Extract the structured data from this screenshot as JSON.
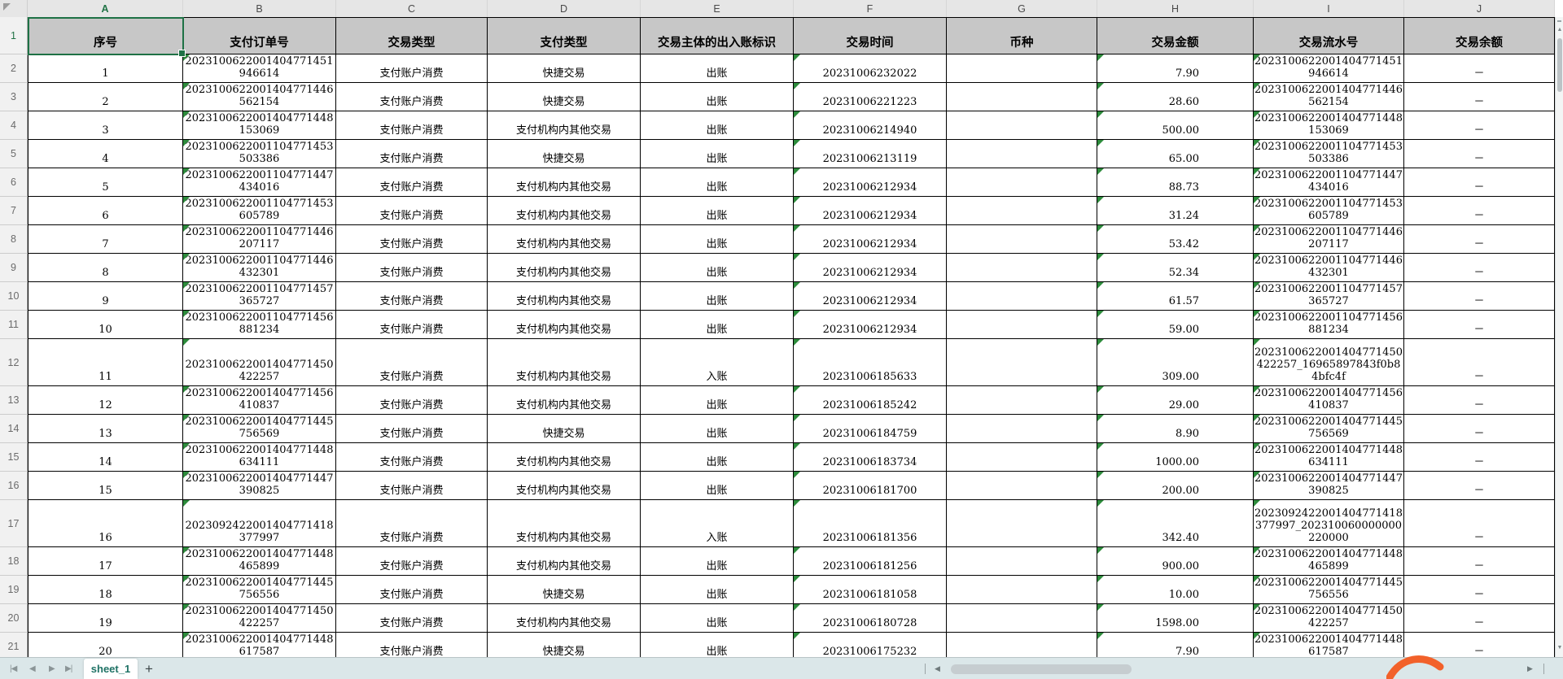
{
  "ui": {
    "selected_cell": "A1",
    "selected_column": "A",
    "selected_row": "1",
    "sheet_tabs": [
      "sheet_1"
    ],
    "add_tab_label": "+",
    "nav_icons": [
      "first-sheet-icon",
      "prev-sheet-icon",
      "next-sheet-icon",
      "last-sheet-icon"
    ],
    "nav_glyphs": [
      "|◀",
      "◀",
      "▶",
      "▶|"
    ],
    "hscroll_glyphs": {
      "left": "◀",
      "right": "▶"
    },
    "vscroll_glyphs": {
      "up": "▲",
      "down": "▼"
    }
  },
  "colors": {
    "selection_green": "#1e7145",
    "error_triangle_green": "#2d8c3c",
    "header_fill": "#c7c7c7",
    "tab_bar_bg": "#dbe7e9",
    "tab_text": "#1f7265",
    "accent_orange": "#f2612a"
  },
  "columns": [
    {
      "letter": "A",
      "header": "序号"
    },
    {
      "letter": "B",
      "header": "支付订单号"
    },
    {
      "letter": "C",
      "header": "交易类型"
    },
    {
      "letter": "D",
      "header": "支付类型"
    },
    {
      "letter": "E",
      "header": "交易主体的出入账标识"
    },
    {
      "letter": "F",
      "header": "交易时间"
    },
    {
      "letter": "G",
      "header": "币种"
    },
    {
      "letter": "H",
      "header": "交易金额"
    },
    {
      "letter": "I",
      "header": "交易流水号"
    },
    {
      "letter": "J",
      "header": "交易余额"
    }
  ],
  "row_numbers": [
    "1",
    "2",
    "3",
    "4",
    "5",
    "6",
    "7",
    "8",
    "9",
    "10",
    "11",
    "12",
    "13",
    "14",
    "15",
    "16",
    "17",
    "18",
    "19",
    "20",
    "21"
  ],
  "rows": [
    {
      "seq": "1",
      "order": "2023100622001404771451946614",
      "type": "支付账户消费",
      "pay": "快捷交易",
      "flag": "出账",
      "time": "20231006232022",
      "currency": "",
      "amount": "7.90",
      "serial": "2023100622001404771451946614",
      "balance": "－",
      "tall": false
    },
    {
      "seq": "2",
      "order": "2023100622001404771446562154",
      "type": "支付账户消费",
      "pay": "快捷交易",
      "flag": "出账",
      "time": "20231006221223",
      "currency": "",
      "amount": "28.60",
      "serial": "2023100622001404771446562154",
      "balance": "－",
      "tall": false
    },
    {
      "seq": "3",
      "order": "2023100622001404771448153069",
      "type": "支付账户消费",
      "pay": "支付机构内其他交易",
      "flag": "出账",
      "time": "20231006214940",
      "currency": "",
      "amount": "500.00",
      "serial": "2023100622001404771448153069",
      "balance": "－",
      "tall": false
    },
    {
      "seq": "4",
      "order": "2023100622001104771453503386",
      "type": "支付账户消费",
      "pay": "快捷交易",
      "flag": "出账",
      "time": "20231006213119",
      "currency": "",
      "amount": "65.00",
      "serial": "2023100622001104771453503386",
      "balance": "－",
      "tall": false
    },
    {
      "seq": "5",
      "order": "2023100622001104771447434016",
      "type": "支付账户消费",
      "pay": "支付机构内其他交易",
      "flag": "出账",
      "time": "20231006212934",
      "currency": "",
      "amount": "88.73",
      "serial": "2023100622001104771447434016",
      "balance": "－",
      "tall": false
    },
    {
      "seq": "6",
      "order": "2023100622001104771453605789",
      "type": "支付账户消费",
      "pay": "支付机构内其他交易",
      "flag": "出账",
      "time": "20231006212934",
      "currency": "",
      "amount": "31.24",
      "serial": "2023100622001104771453605789",
      "balance": "－",
      "tall": false
    },
    {
      "seq": "7",
      "order": "2023100622001104771446207117",
      "type": "支付账户消费",
      "pay": "支付机构内其他交易",
      "flag": "出账",
      "time": "20231006212934",
      "currency": "",
      "amount": "53.42",
      "serial": "2023100622001104771446207117",
      "balance": "－",
      "tall": false
    },
    {
      "seq": "8",
      "order": "2023100622001104771446432301",
      "type": "支付账户消费",
      "pay": "支付机构内其他交易",
      "flag": "出账",
      "time": "20231006212934",
      "currency": "",
      "amount": "52.34",
      "serial": "2023100622001104771446432301",
      "balance": "－",
      "tall": false
    },
    {
      "seq": "9",
      "order": "2023100622001104771457365727",
      "type": "支付账户消费",
      "pay": "支付机构内其他交易",
      "flag": "出账",
      "time": "20231006212934",
      "currency": "",
      "amount": "61.57",
      "serial": "2023100622001104771457365727",
      "balance": "－",
      "tall": false
    },
    {
      "seq": "10",
      "order": "2023100622001104771456881234",
      "type": "支付账户消费",
      "pay": "支付机构内其他交易",
      "flag": "出账",
      "time": "20231006212934",
      "currency": "",
      "amount": "59.00",
      "serial": "2023100622001104771456881234",
      "balance": "－",
      "tall": false
    },
    {
      "seq": "11",
      "order": "2023100622001404771450422257",
      "type": "支付账户消费",
      "pay": "支付机构内其他交易",
      "flag": "入账",
      "time": "20231006185633",
      "currency": "",
      "amount": "309.00",
      "serial": "2023100622001404771450422257_16965897843f0b84bfc4f",
      "balance": "－",
      "tall": true
    },
    {
      "seq": "12",
      "order": "2023100622001404771456410837",
      "type": "支付账户消费",
      "pay": "支付机构内其他交易",
      "flag": "出账",
      "time": "20231006185242",
      "currency": "",
      "amount": "29.00",
      "serial": "2023100622001404771456410837",
      "balance": "－",
      "tall": false
    },
    {
      "seq": "13",
      "order": "2023100622001404771445756569",
      "type": "支付账户消费",
      "pay": "快捷交易",
      "flag": "出账",
      "time": "20231006184759",
      "currency": "",
      "amount": "8.90",
      "serial": "2023100622001404771445756569",
      "balance": "－",
      "tall": false
    },
    {
      "seq": "14",
      "order": "2023100622001404771448634111",
      "type": "支付账户消费",
      "pay": "支付机构内其他交易",
      "flag": "出账",
      "time": "20231006183734",
      "currency": "",
      "amount": "1000.00",
      "serial": "2023100622001404771448634111",
      "balance": "－",
      "tall": false
    },
    {
      "seq": "15",
      "order": "2023100622001404771447390825",
      "type": "支付账户消费",
      "pay": "支付机构内其他交易",
      "flag": "出账",
      "time": "20231006181700",
      "currency": "",
      "amount": "200.00",
      "serial": "2023100622001404771447390825",
      "balance": "－",
      "tall": false
    },
    {
      "seq": "16",
      "order": "2023092422001404771418377997",
      "type": "支付账户消费",
      "pay": "支付机构内其他交易",
      "flag": "入账",
      "time": "20231006181356",
      "currency": "",
      "amount": "342.40",
      "serial": "2023092422001404771418377997_202310060000000220000",
      "balance": "－",
      "tall": true
    },
    {
      "seq": "17",
      "order": "2023100622001404771448465899",
      "type": "支付账户消费",
      "pay": "支付机构内其他交易",
      "flag": "出账",
      "time": "20231006181256",
      "currency": "",
      "amount": "900.00",
      "serial": "2023100622001404771448465899",
      "balance": "－",
      "tall": false
    },
    {
      "seq": "18",
      "order": "2023100622001404771445756556",
      "type": "支付账户消费",
      "pay": "快捷交易",
      "flag": "出账",
      "time": "20231006181058",
      "currency": "",
      "amount": "10.00",
      "serial": "2023100622001404771445756556",
      "balance": "－",
      "tall": false
    },
    {
      "seq": "19",
      "order": "2023100622001404771450422257",
      "type": "支付账户消费",
      "pay": "支付机构内其他交易",
      "flag": "出账",
      "time": "20231006180728",
      "currency": "",
      "amount": "1598.00",
      "serial": "2023100622001404771450422257",
      "balance": "－",
      "tall": false
    },
    {
      "seq": "20",
      "order": "2023100622001404771448617587",
      "type": "支付账户消费",
      "pay": "快捷交易",
      "flag": "出账",
      "time": "20231006175232",
      "currency": "",
      "amount": "7.90",
      "serial": "2023100622001404771448617587",
      "balance": "－",
      "tall": false
    }
  ]
}
